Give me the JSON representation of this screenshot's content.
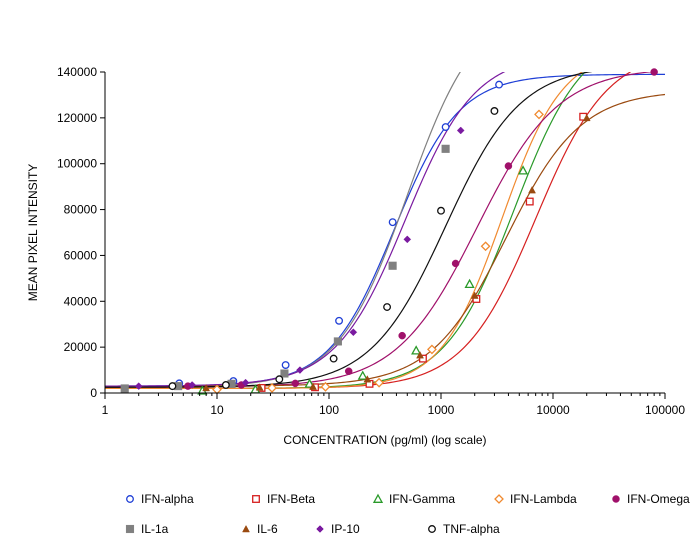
{
  "chart_data": {
    "type": "scatter",
    "xlabel": "CONCENTRATION (pg/ml) (log scale)",
    "ylabel": "MEAN PIXEL INTENSITY",
    "xscale": "log",
    "xlim": [
      1,
      100000
    ],
    "ylim": [
      0,
      140000
    ],
    "x_ticks": [
      1,
      10,
      100,
      1000,
      10000,
      100000
    ],
    "x_tick_labels": [
      "1",
      "10",
      "100",
      "1000",
      "10000",
      "100000"
    ],
    "y_ticks": [
      0,
      20000,
      40000,
      60000,
      80000,
      100000,
      120000,
      140000
    ],
    "y_tick_labels": [
      "0",
      "20000",
      "40000",
      "60000",
      "80000",
      "100000",
      "120000",
      "140000"
    ],
    "grid": false,
    "legend_position": "bottom",
    "series": [
      {
        "name": "IFN-alpha",
        "color": "#1f3fd6",
        "marker": "circle-open",
        "fit": {
          "bottom": 3000,
          "top": 139000,
          "ec50": 380,
          "hill": 1.5
        },
        "points": [
          [
            4.6,
            4200
          ],
          [
            14,
            5200
          ],
          [
            41,
            12200
          ],
          [
            123,
            31500
          ],
          [
            370,
            74500
          ],
          [
            1100,
            116000
          ],
          [
            3300,
            134500
          ]
        ]
      },
      {
        "name": "IFN-Beta",
        "color": "#d62020",
        "marker": "square-open",
        "fit": {
          "bottom": 2000,
          "top": 150000,
          "ec50": 7000,
          "hill": 1.35
        },
        "points": [
          [
            25,
            2200
          ],
          [
            75,
            2500
          ],
          [
            230,
            4000
          ],
          [
            690,
            15000
          ],
          [
            2070,
            41000
          ],
          [
            6200,
            83500
          ],
          [
            18600,
            120500
          ]
        ]
      },
      {
        "name": "IFN-Gamma",
        "color": "#2a9a2a",
        "marker": "triangle-open",
        "fit": {
          "bottom": 2000,
          "top": 158000,
          "ec50": 4500,
          "hill": 1.4
        },
        "points": [
          [
            7.4,
            1000
          ],
          [
            22,
            1500
          ],
          [
            67,
            4000
          ],
          [
            200,
            7500
          ],
          [
            600,
            18500
          ],
          [
            1800,
            47500
          ],
          [
            5400,
            97000
          ]
        ]
      },
      {
        "name": "IFN-Lambda",
        "color": "#f08a30",
        "marker": "diamond-open",
        "fit": {
          "bottom": 2000,
          "top": 150000,
          "ec50": 3500,
          "hill": 1.6
        },
        "points": [
          [
            10,
            1500
          ],
          [
            31,
            2200
          ],
          [
            93,
            2700
          ],
          [
            280,
            4500
          ],
          [
            830,
            19000
          ],
          [
            2500,
            64000
          ],
          [
            7500,
            121500
          ]
        ]
      },
      {
        "name": "IFN-Omega",
        "color": "#a0106a",
        "marker": "circle-filled",
        "fit": {
          "bottom": 2500,
          "top": 142000,
          "ec50": 2100,
          "hill": 1.2
        },
        "points": [
          [
            5.5,
            3000
          ],
          [
            16.5,
            3500
          ],
          [
            50,
            4200
          ],
          [
            150,
            9500
          ],
          [
            450,
            25000
          ],
          [
            1350,
            56500
          ],
          [
            4000,
            99000
          ],
          [
            80000,
            140000
          ]
        ]
      },
      {
        "name": "IL-1a",
        "color": "#808080",
        "marker": "square-filled",
        "fit": {
          "bottom": 2500,
          "top": 170000,
          "ec50": 500,
          "hill": 1.4
        },
        "points": [
          [
            1.5,
            2000
          ],
          [
            4.5,
            3000
          ],
          [
            13.5,
            4000
          ],
          [
            40,
            8500
          ],
          [
            120,
            22500
          ],
          [
            370,
            55500
          ],
          [
            1100,
            106500
          ]
        ]
      },
      {
        "name": "IL-6",
        "color": "#9a4a10",
        "marker": "triangle-filled",
        "fit": {
          "bottom": 3000,
          "top": 132000,
          "ec50": 3800,
          "hill": 1.3
        },
        "points": [
          [
            8,
            2200
          ],
          [
            24,
            2500
          ],
          [
            72,
            2800
          ],
          [
            220,
            6000
          ],
          [
            650,
            16500
          ],
          [
            2000,
            42500
          ],
          [
            6500,
            88500
          ],
          [
            20000,
            120000
          ]
        ]
      },
      {
        "name": "IP-10",
        "color": "#7a1aa0",
        "marker": "diamond-filled",
        "fit": {
          "bottom": 3000,
          "top": 148000,
          "ec50": 480,
          "hill": 1.4
        },
        "points": [
          [
            2,
            3000
          ],
          [
            6,
            3500
          ],
          [
            18,
            4500
          ],
          [
            55,
            10000
          ],
          [
            165,
            26500
          ],
          [
            500,
            67000
          ],
          [
            1500,
            114500
          ]
        ]
      },
      {
        "name": "TNF-alpha",
        "color": "#101010",
        "marker": "circle-open",
        "fit": {
          "bottom": 2500,
          "top": 143000,
          "ec50": 1100,
          "hill": 1.3
        },
        "points": [
          [
            4,
            3000
          ],
          [
            12,
            3500
          ],
          [
            36,
            6000
          ],
          [
            110,
            15000
          ],
          [
            330,
            37500
          ],
          [
            1000,
            79500
          ],
          [
            3000,
            123000
          ]
        ]
      }
    ]
  }
}
